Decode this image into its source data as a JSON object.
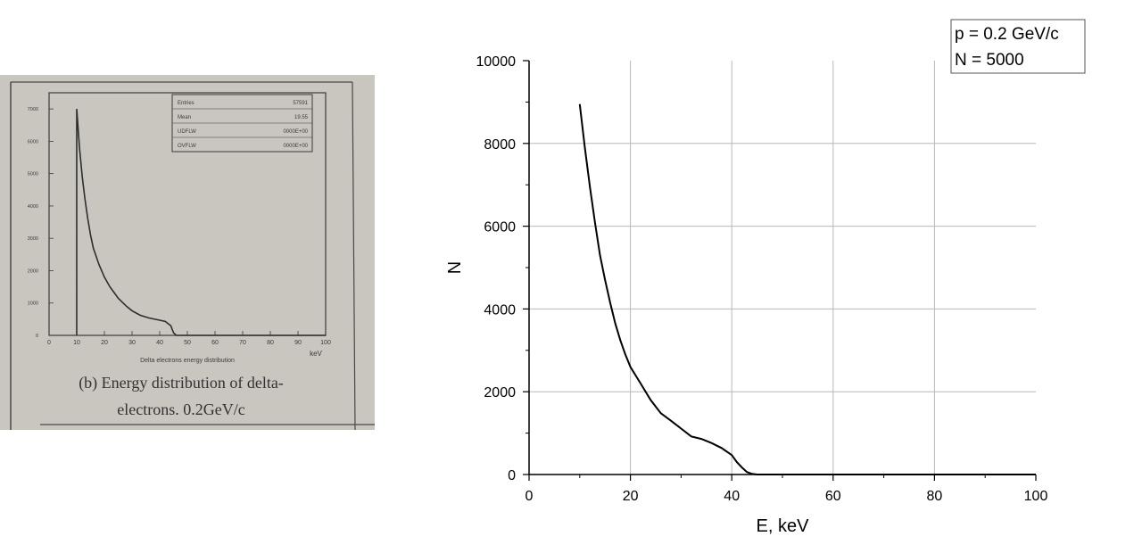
{
  "chart_data": [
    {
      "type": "line",
      "title": "",
      "xlabel": "Delta electrons energy distribution",
      "x_unit": "keV",
      "xlim": [
        0,
        100
      ],
      "ylim": [
        0,
        7500
      ],
      "x_ticks": [
        "0",
        "10",
        "20",
        "30",
        "40",
        "50",
        "60",
        "70",
        "80",
        "90",
        "100"
      ],
      "y_ticks": [
        "0",
        "1000",
        "2000",
        "3000",
        "4000",
        "5000",
        "6000",
        "7000"
      ],
      "stats_box": [
        {
          "label": "Entries",
          "value": "57591"
        },
        {
          "label": "Mean",
          "value": "19.55"
        },
        {
          "label": "UDFLW",
          "value": "0000E+00"
        },
        {
          "label": "OVFLW",
          "value": "0000E+00"
        }
      ],
      "caption_line1": "(b) Energy distribution of delta-",
      "caption_line2": "electrons. 0.2GeV/c",
      "series": [
        {
          "x": [
            10,
            10,
            11,
            12,
            13,
            14,
            15,
            16,
            18,
            20,
            22,
            25,
            28,
            30,
            33,
            36,
            40,
            42,
            44,
            45,
            46,
            50,
            60,
            70,
            80,
            90,
            100
          ],
          "y": [
            0,
            7000,
            5800,
            4900,
            4200,
            3600,
            3100,
            2700,
            2200,
            1800,
            1500,
            1150,
            900,
            760,
            620,
            540,
            470,
            430,
            300,
            80,
            0,
            0,
            0,
            0,
            0,
            0,
            0
          ]
        }
      ],
      "colors": {
        "background": "#c9c6c0",
        "ink": "#3b3a38"
      }
    },
    {
      "type": "line",
      "title": "",
      "xlabel": "E, keV",
      "ylabel": "N",
      "xlim": [
        0,
        100
      ],
      "ylim": [
        0,
        10000
      ],
      "x_ticks": [
        "0",
        "20",
        "40",
        "60",
        "80",
        "100"
      ],
      "y_ticks": [
        "0",
        "2000",
        "4000",
        "6000",
        "8000",
        "10000"
      ],
      "grid": true,
      "annotation_line1": "p = 0.2 GeV/c",
      "annotation_line2": "N = 5000",
      "annotation_position": "top-right",
      "series": [
        {
          "x": [
            10,
            11,
            12,
            13,
            14,
            15,
            16,
            17,
            18,
            19,
            20,
            22,
            24,
            26,
            28,
            30,
            32,
            34,
            36,
            38,
            40,
            41,
            42,
            43,
            44,
            45,
            50,
            60,
            70,
            80,
            90,
            100
          ],
          "y": [
            8950,
            7900,
            6950,
            6100,
            5300,
            4700,
            4150,
            3650,
            3250,
            2900,
            2600,
            2200,
            1800,
            1480,
            1300,
            1110,
            920,
            860,
            760,
            640,
            470,
            300,
            170,
            60,
            15,
            0,
            0,
            0,
            0,
            0,
            0,
            0
          ]
        }
      ],
      "colors": {
        "line": "#000000",
        "grid": "#b8b8b8"
      }
    }
  ]
}
